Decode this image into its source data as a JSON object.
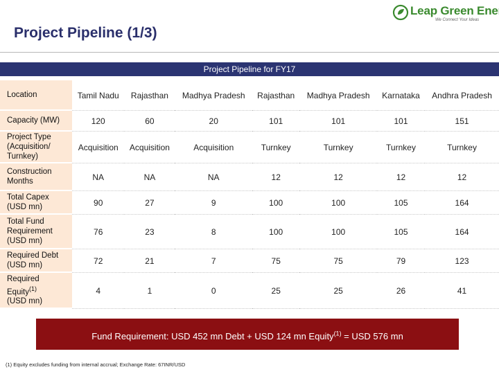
{
  "page": {
    "title": "Project Pipeline (1/3)",
    "logo_name": "Leap Green Energy",
    "logo_tagline": "We Connect Your Ideas"
  },
  "banner": "Project Pipeline for FY17",
  "table": {
    "rows": [
      {
        "label": "Location",
        "label_sup": "",
        "label_after": "",
        "cells": [
          "Tamil Nadu",
          "Rajasthan",
          "Madhya Pradesh",
          "Rajasthan",
          "Madhya Pradesh",
          "Karnataka",
          "Andhra Pradesh"
        ]
      },
      {
        "label": "Capacity (MW)",
        "label_sup": "",
        "label_after": "",
        "cells": [
          "120",
          "60",
          "20",
          "101",
          "101",
          "101",
          "151"
        ]
      },
      {
        "label": "Project Type (Acquisition/ Turnkey)",
        "label_sup": "",
        "label_after": "",
        "cells": [
          "Acquisition",
          "Acquisition",
          "Acquisition",
          "Turnkey",
          "Turnkey",
          "Turnkey",
          "Turnkey"
        ]
      },
      {
        "label": "Construction Months",
        "label_sup": "",
        "label_after": "",
        "cells": [
          "NA",
          "NA",
          "NA",
          "12",
          "12",
          "12",
          "12"
        ]
      },
      {
        "label": "Total Capex (USD mn)",
        "label_sup": "",
        "label_after": "",
        "cells": [
          "90",
          "27",
          "9",
          "100",
          "100",
          "105",
          "164"
        ]
      },
      {
        "label": "Total Fund Requirement (USD mn)",
        "label_sup": "",
        "label_after": "",
        "cells": [
          "76",
          "23",
          "8",
          "100",
          "100",
          "105",
          "164"
        ]
      },
      {
        "label": "Required Debt (USD mn)",
        "label_sup": "",
        "label_after": "",
        "cells": [
          "72",
          "21",
          "7",
          "75",
          "75",
          "79",
          "123"
        ]
      },
      {
        "label": "Required Equity",
        "label_sup": "(1)",
        "label_after": "(USD mn)",
        "cells": [
          "4",
          "1",
          "0",
          "25",
          "25",
          "26",
          "41"
        ]
      }
    ]
  },
  "summary": {
    "text_before": "Fund Requirement: USD 452 mn Debt + USD 124 mn Equity",
    "sup": "(1)",
    "text_after": " = USD 576  mn"
  },
  "footnote": "(1) Equity excludes funding from internal accrual; Exchange Rate: 67INR/USD",
  "colors": {
    "title": "#2a2f6b",
    "banner": "#2b3472",
    "label_bg": "#fde8d6",
    "summary_bg": "#8b0f12",
    "logo_green": "#3a8a2e"
  }
}
